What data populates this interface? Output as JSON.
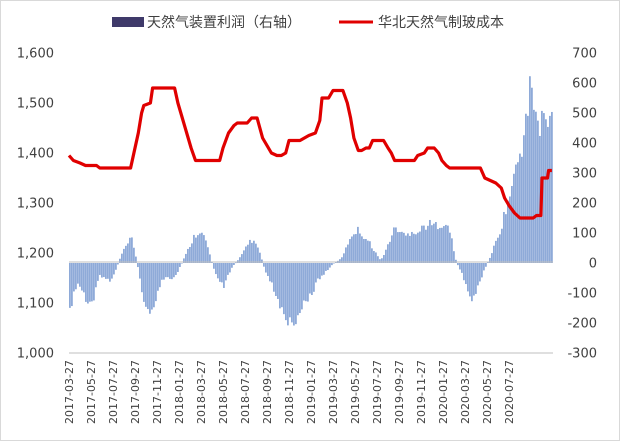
{
  "chart_data": {
    "type": "bar+line",
    "title": "",
    "legend": [
      {
        "name": "天然气装置利润（右轴）",
        "type": "bar",
        "color": "#8eaad8"
      },
      {
        "name": "华北天然气制玻成本",
        "type": "line",
        "color": "#e00000"
      }
    ],
    "legend_swatch_color": "#3f3a6a",
    "left_axis": {
      "min": 1000,
      "max": 1600,
      "ticks": [
        "1,000",
        "1,100",
        "1,200",
        "1,300",
        "1,400",
        "1,500",
        "1,600"
      ]
    },
    "right_axis": {
      "min": -300,
      "max": 700,
      "ticks": [
        "-300",
        "-200",
        "-100",
        "0",
        "100",
        "200",
        "300",
        "400",
        "500",
        "600",
        "700"
      ]
    },
    "x_range": [
      "2017-03-27",
      "2020-09-20"
    ],
    "x_ticks": [
      "2017-03-27",
      "2017-05-27",
      "2017-07-27",
      "2017-09-27",
      "2017-11-27",
      "2018-01-27",
      "2018-03-27",
      "2018-05-27",
      "2018-07-27",
      "2018-09-27",
      "2018-11-27",
      "2019-01-27",
      "2019-03-27",
      "2019-05-27",
      "2019-07-27",
      "2019-09-27",
      "2019-11-27",
      "2020-01-27",
      "2020-03-27",
      "2020-05-27",
      "2020-07-27"
    ],
    "cost_series": [
      {
        "t": 0,
        "v": 1395
      },
      {
        "t": 0.4,
        "v": 1385
      },
      {
        "t": 1,
        "v": 1380
      },
      {
        "t": 1.5,
        "v": 1375
      },
      {
        "t": 2.5,
        "v": 1375
      },
      {
        "t": 2.8,
        "v": 1370
      },
      {
        "t": 5.6,
        "v": 1370
      },
      {
        "t": 5.9,
        "v": 1400
      },
      {
        "t": 6.3,
        "v": 1440
      },
      {
        "t": 6.6,
        "v": 1480
      },
      {
        "t": 6.8,
        "v": 1495
      },
      {
        "t": 7.4,
        "v": 1500
      },
      {
        "t": 7.6,
        "v": 1530
      },
      {
        "t": 9.6,
        "v": 1530
      },
      {
        "t": 9.9,
        "v": 1500
      },
      {
        "t": 10.3,
        "v": 1470
      },
      {
        "t": 10.7,
        "v": 1440
      },
      {
        "t": 11.1,
        "v": 1410
      },
      {
        "t": 11.5,
        "v": 1385
      },
      {
        "t": 11.8,
        "v": 1385
      },
      {
        "t": 13.7,
        "v": 1385
      },
      {
        "t": 14,
        "v": 1410
      },
      {
        "t": 14.5,
        "v": 1440
      },
      {
        "t": 15,
        "v": 1455
      },
      {
        "t": 15.3,
        "v": 1460
      },
      {
        "t": 16.2,
        "v": 1460
      },
      {
        "t": 16.6,
        "v": 1470
      },
      {
        "t": 17.1,
        "v": 1470
      },
      {
        "t": 17.6,
        "v": 1430
      },
      {
        "t": 18.4,
        "v": 1400
      },
      {
        "t": 18.9,
        "v": 1395
      },
      {
        "t": 19.3,
        "v": 1395
      },
      {
        "t": 19.7,
        "v": 1400
      },
      {
        "t": 20,
        "v": 1425
      },
      {
        "t": 20.3,
        "v": 1425
      },
      {
        "t": 21,
        "v": 1425
      },
      {
        "t": 21.4,
        "v": 1430
      },
      {
        "t": 21.8,
        "v": 1435
      },
      {
        "t": 22.4,
        "v": 1440
      },
      {
        "t": 22.8,
        "v": 1465
      },
      {
        "t": 23,
        "v": 1510
      },
      {
        "t": 23.6,
        "v": 1510
      },
      {
        "t": 24,
        "v": 1525
      },
      {
        "t": 24.9,
        "v": 1525
      },
      {
        "t": 25.3,
        "v": 1500
      },
      {
        "t": 25.6,
        "v": 1470
      },
      {
        "t": 25.9,
        "v": 1430
      },
      {
        "t": 26.3,
        "v": 1405
      },
      {
        "t": 26.6,
        "v": 1405
      },
      {
        "t": 27,
        "v": 1410
      },
      {
        "t": 27.3,
        "v": 1410
      },
      {
        "t": 27.6,
        "v": 1425
      },
      {
        "t": 28.6,
        "v": 1425
      },
      {
        "t": 29,
        "v": 1410
      },
      {
        "t": 29.3,
        "v": 1400
      },
      {
        "t": 29.6,
        "v": 1385
      },
      {
        "t": 31.4,
        "v": 1385
      },
      {
        "t": 31.7,
        "v": 1395
      },
      {
        "t": 32.3,
        "v": 1400
      },
      {
        "t": 32.6,
        "v": 1410
      },
      {
        "t": 33.2,
        "v": 1410
      },
      {
        "t": 33.6,
        "v": 1400
      },
      {
        "t": 33.9,
        "v": 1385
      },
      {
        "t": 34.3,
        "v": 1375
      },
      {
        "t": 34.6,
        "v": 1370
      },
      {
        "t": 37.4,
        "v": 1370
      },
      {
        "t": 37.8,
        "v": 1350
      },
      {
        "t": 38.3,
        "v": 1345
      },
      {
        "t": 38.8,
        "v": 1340
      },
      {
        "t": 39.3,
        "v": 1330
      },
      {
        "t": 39.6,
        "v": 1310
      },
      {
        "t": 40,
        "v": 1295
      },
      {
        "t": 40.5,
        "v": 1280
      },
      {
        "t": 41,
        "v": 1270
      },
      {
        "t": 41.8,
        "v": 1270
      },
      {
        "t": 42.2,
        "v": 1270
      },
      {
        "t": 42.5,
        "v": 1275
      },
      {
        "t": 42.9,
        "v": 1275
      },
      {
        "t": 43,
        "v": 1350
      },
      {
        "t": 43.5,
        "v": 1350
      },
      {
        "t": 43.6,
        "v": 1365
      },
      {
        "t": 43.9,
        "v": 1365
      }
    ],
    "profit_series": [
      {
        "t": 0,
        "v": -195
      },
      {
        "t": 0.2,
        "v": -140
      },
      {
        "t": 0.5,
        "v": -100
      },
      {
        "t": 0.8,
        "v": -70
      },
      {
        "t": 1.2,
        "v": -90
      },
      {
        "t": 1.6,
        "v": -130
      },
      {
        "t": 2,
        "v": -150
      },
      {
        "t": 2.4,
        "v": -100
      },
      {
        "t": 2.8,
        "v": -40
      },
      {
        "t": 3.3,
        "v": -50
      },
      {
        "t": 3.8,
        "v": -60
      },
      {
        "t": 4.3,
        "v": -20
      },
      {
        "t": 4.8,
        "v": 30
      },
      {
        "t": 5.3,
        "v": 60
      },
      {
        "t": 5.7,
        "v": 85
      },
      {
        "t": 6,
        "v": 40
      },
      {
        "t": 6.3,
        "v": -20
      },
      {
        "t": 6.7,
        "v": -100
      },
      {
        "t": 7.1,
        "v": -160
      },
      {
        "t": 7.5,
        "v": -180
      },
      {
        "t": 7.9,
        "v": -120
      },
      {
        "t": 8.4,
        "v": -60
      },
      {
        "t": 8.9,
        "v": -50
      },
      {
        "t": 9.4,
        "v": -60
      },
      {
        "t": 9.9,
        "v": -30
      },
      {
        "t": 10.4,
        "v": 10
      },
      {
        "t": 10.9,
        "v": 50
      },
      {
        "t": 11.4,
        "v": 90
      },
      {
        "t": 11.9,
        "v": 110
      },
      {
        "t": 12.4,
        "v": 80
      },
      {
        "t": 12.8,
        "v": 30
      },
      {
        "t": 13.2,
        "v": -20
      },
      {
        "t": 13.7,
        "v": -60
      },
      {
        "t": 14.1,
        "v": -80
      },
      {
        "t": 14.5,
        "v": -40
      },
      {
        "t": 14.9,
        "v": -10
      },
      {
        "t": 15.4,
        "v": 10
      },
      {
        "t": 15.9,
        "v": 40
      },
      {
        "t": 16.3,
        "v": 70
      },
      {
        "t": 16.8,
        "v": 75
      },
      {
        "t": 17.3,
        "v": 40
      },
      {
        "t": 17.8,
        "v": -20
      },
      {
        "t": 18.3,
        "v": -60
      },
      {
        "t": 18.8,
        "v": -100
      },
      {
        "t": 19.2,
        "v": -140
      },
      {
        "t": 19.7,
        "v": -180
      },
      {
        "t": 20.1,
        "v": -195
      },
      {
        "t": 20.6,
        "v": -185
      },
      {
        "t": 21.1,
        "v": -160
      },
      {
        "t": 21.6,
        "v": -120
      },
      {
        "t": 22.1,
        "v": -100
      },
      {
        "t": 22.6,
        "v": -60
      },
      {
        "t": 23.1,
        "v": -40
      },
      {
        "t": 23.6,
        "v": -20
      },
      {
        "t": 24.1,
        "v": 0
      },
      {
        "t": 24.6,
        "v": 10
      },
      {
        "t": 25,
        "v": 30
      },
      {
        "t": 25.4,
        "v": 70
      },
      {
        "t": 25.8,
        "v": 100
      },
      {
        "t": 26.3,
        "v": 110
      },
      {
        "t": 26.8,
        "v": 90
      },
      {
        "t": 27.3,
        "v": 70
      },
      {
        "t": 27.8,
        "v": 40
      },
      {
        "t": 28.3,
        "v": 10
      },
      {
        "t": 28.7,
        "v": 30
      },
      {
        "t": 29.2,
        "v": 80
      },
      {
        "t": 29.7,
        "v": 120
      },
      {
        "t": 30.2,
        "v": 100
      },
      {
        "t": 30.7,
        "v": 90
      },
      {
        "t": 31.2,
        "v": 110
      },
      {
        "t": 31.7,
        "v": 100
      },
      {
        "t": 32.2,
        "v": 120
      },
      {
        "t": 32.7,
        "v": 130
      },
      {
        "t": 33.2,
        "v": 125
      },
      {
        "t": 33.7,
        "v": 130
      },
      {
        "t": 34.2,
        "v": 130
      },
      {
        "t": 34.7,
        "v": 100
      },
      {
        "t": 35.1,
        "v": 20
      },
      {
        "t": 35.4,
        "v": -10
      },
      {
        "t": 35.8,
        "v": -40
      },
      {
        "t": 36.2,
        "v": -90
      },
      {
        "t": 36.6,
        "v": -120
      },
      {
        "t": 37,
        "v": -100
      },
      {
        "t": 37.4,
        "v": -60
      },
      {
        "t": 37.8,
        "v": -20
      },
      {
        "t": 38.3,
        "v": 20
      },
      {
        "t": 38.7,
        "v": 60
      },
      {
        "t": 39.1,
        "v": 90
      },
      {
        "t": 39.5,
        "v": 150
      },
      {
        "t": 39.9,
        "v": 200
      },
      {
        "t": 40.3,
        "v": 260
      },
      {
        "t": 40.7,
        "v": 320
      },
      {
        "t": 41.1,
        "v": 380
      },
      {
        "t": 41.5,
        "v": 450
      },
      {
        "t": 41.8,
        "v": 520
      },
      {
        "t": 42,
        "v": 620
      },
      {
        "t": 42.2,
        "v": 560
      },
      {
        "t": 42.5,
        "v": 480
      },
      {
        "t": 42.8,
        "v": 430
      },
      {
        "t": 43.1,
        "v": 500
      },
      {
        "t": 43.4,
        "v": 460
      },
      {
        "t": 43.7,
        "v": 470
      },
      {
        "t": 43.9,
        "v": 480
      }
    ]
  }
}
